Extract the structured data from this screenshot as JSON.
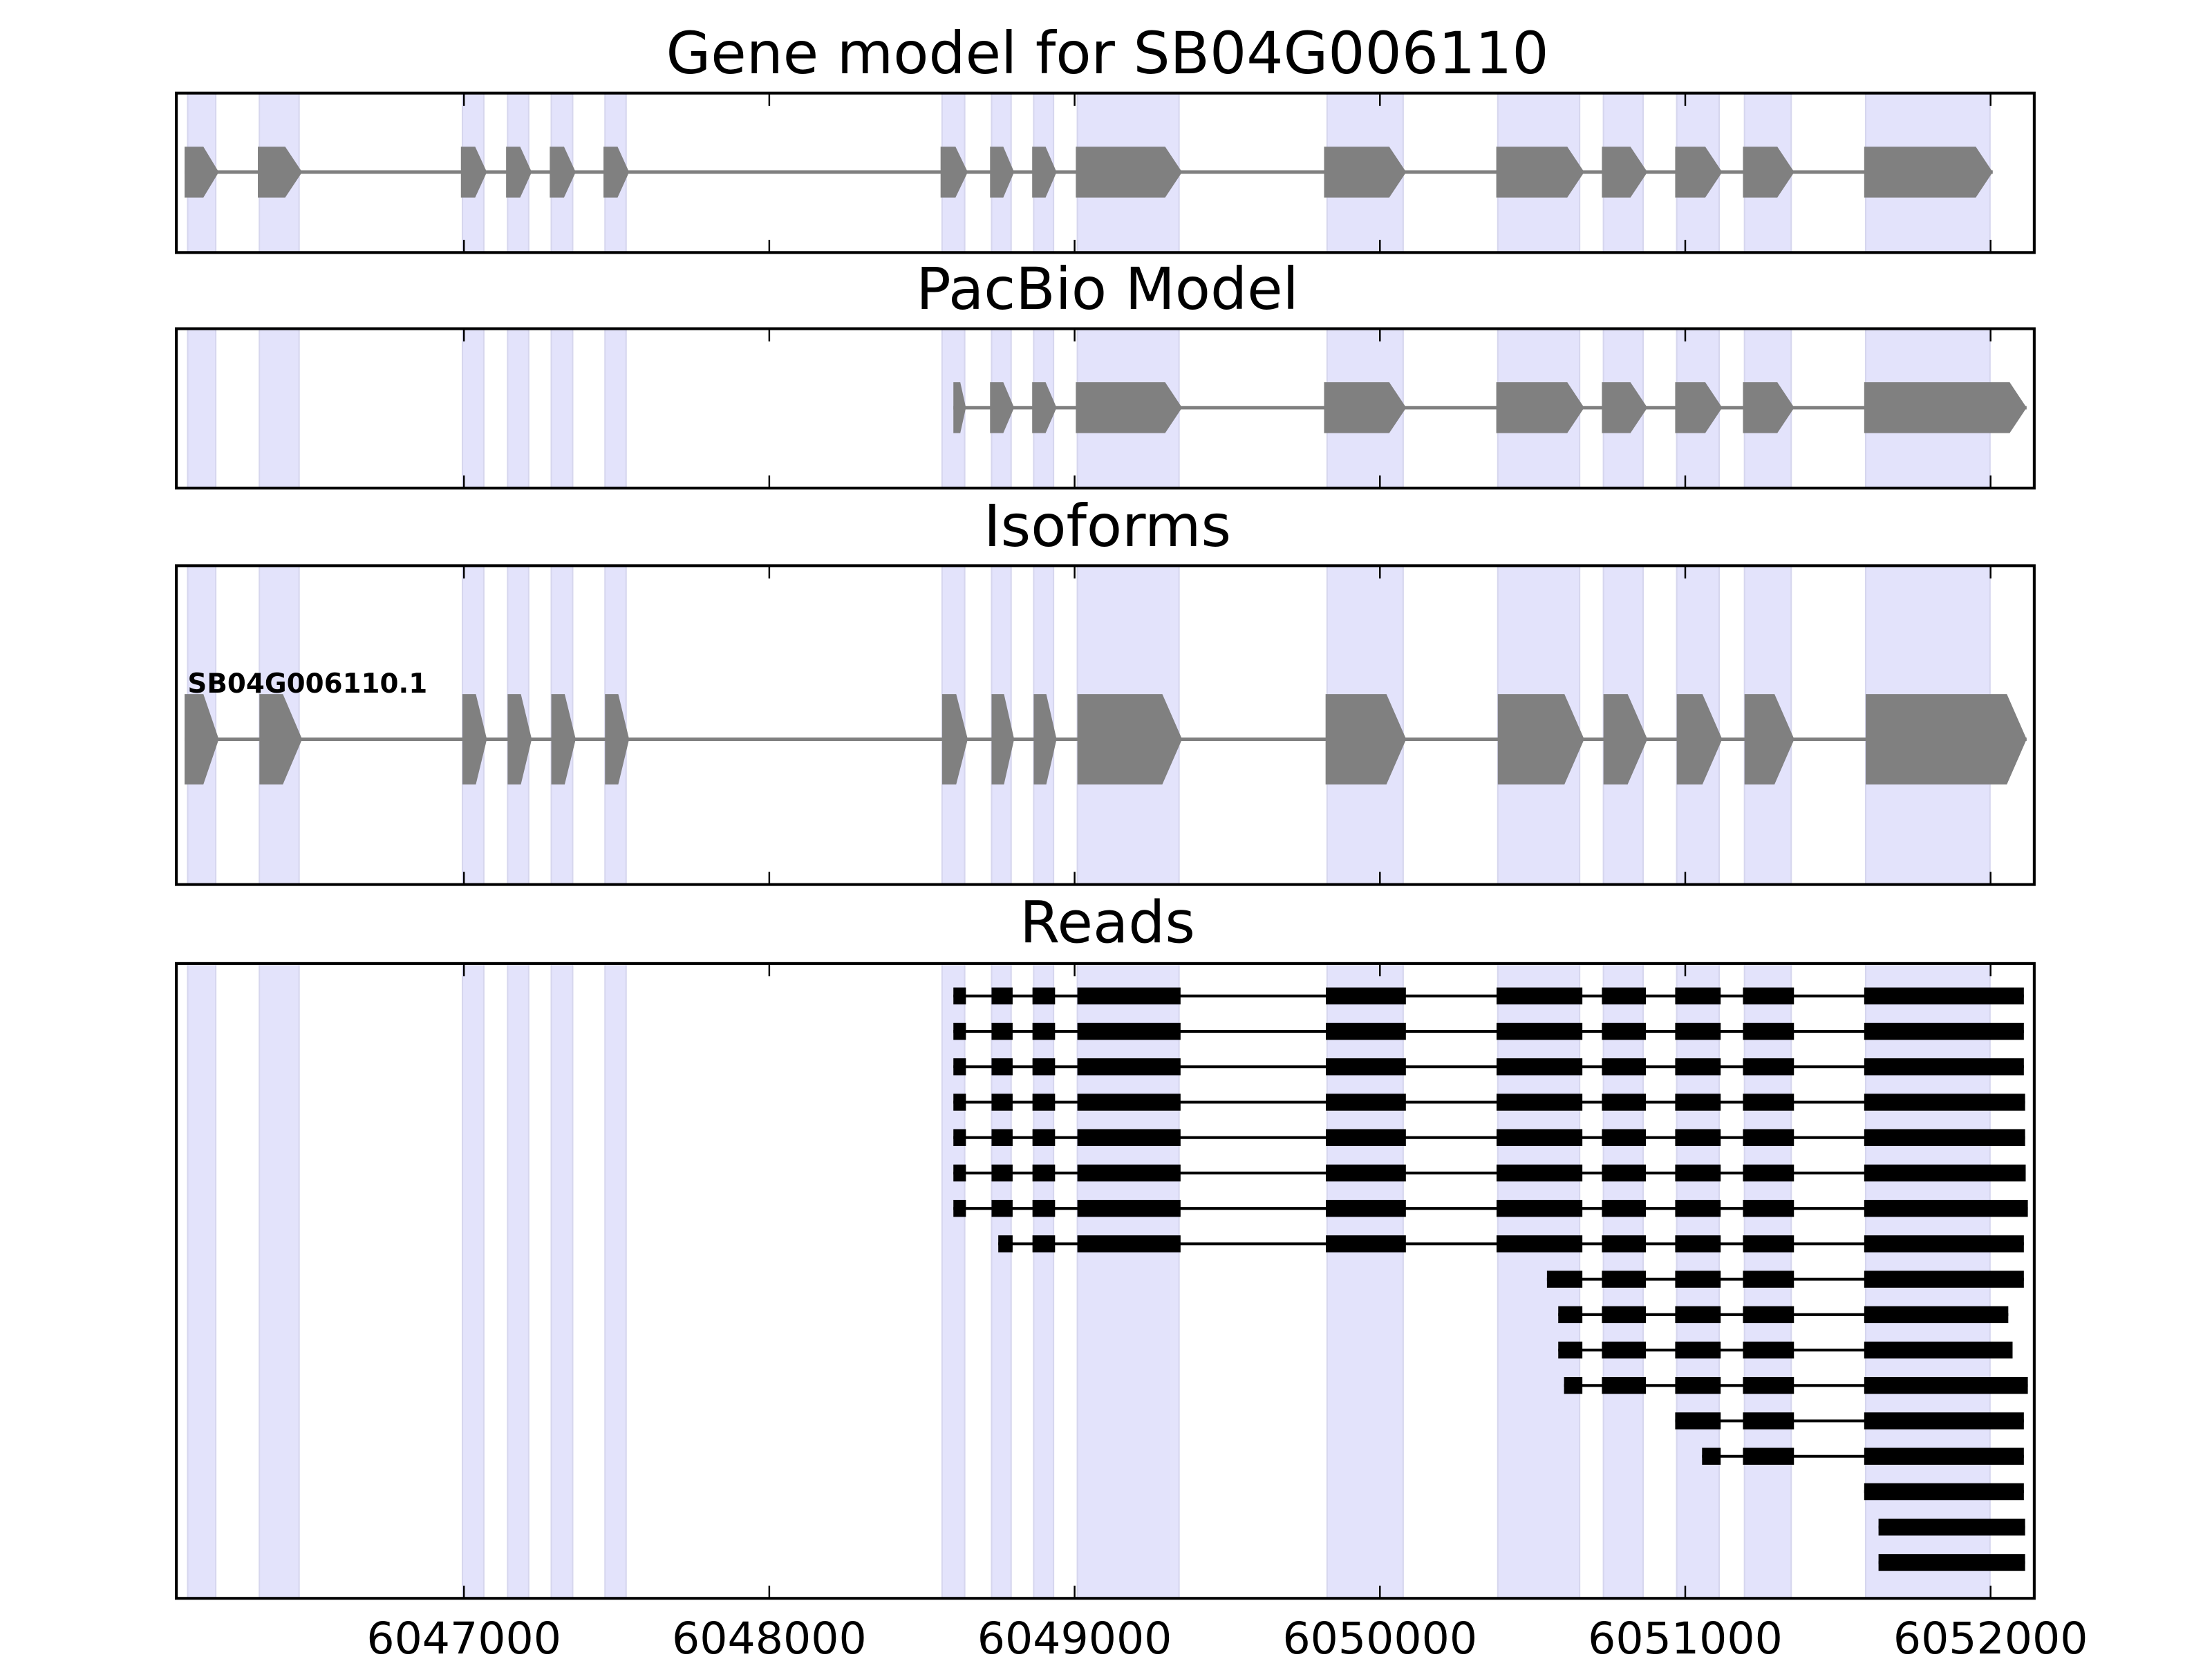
{
  "chart_data": {
    "type": "gene-structure",
    "x_range": [
      6046058,
      6052143
    ],
    "x_ticks": [
      6047000,
      6048000,
      6049000,
      6050000,
      6051000,
      6052000
    ],
    "tick_labels": [
      "6047000",
      "6048000",
      "6049000",
      "6050000",
      "6051000",
      "6052000"
    ],
    "colors": {
      "shading": "#e3e3fb",
      "model": "#808080",
      "reads": "#000000"
    },
    "shaded_regions": [
      [
        6046095,
        6046187
      ],
      [
        6046330,
        6046460
      ],
      [
        6046995,
        6047065
      ],
      [
        6047143,
        6047212
      ],
      [
        6047286,
        6047356
      ],
      [
        6047462,
        6047531
      ],
      [
        6048566,
        6048640
      ],
      [
        6048728,
        6048792
      ],
      [
        6048866,
        6048931
      ],
      [
        6049009,
        6049342
      ],
      [
        6049827,
        6050076
      ],
      [
        6050386,
        6050654
      ],
      [
        6050732,
        6050862
      ],
      [
        6050972,
        6051111
      ],
      [
        6051194,
        6051347
      ],
      [
        6051591,
        6051998
      ]
    ],
    "panels": [
      {
        "title": "Gene model for SB04G006110",
        "kind": "model",
        "exons": [
          [
            6046085,
            6046197
          ],
          [
            6046325,
            6046470
          ],
          [
            6046990,
            6047075
          ],
          [
            6047138,
            6047222
          ],
          [
            6047281,
            6047366
          ],
          [
            6047457,
            6047541
          ],
          [
            6048561,
            6048650
          ],
          [
            6048723,
            6048802
          ],
          [
            6048861,
            6048941
          ],
          [
            6049004,
            6049352
          ],
          [
            6049817,
            6050086
          ],
          [
            6050381,
            6050669
          ],
          [
            6050727,
            6050876
          ],
          [
            6050967,
            6051121
          ],
          [
            6051189,
            6051357
          ],
          [
            6051586,
            6052007
          ]
        ]
      },
      {
        "title": "PacBio Model",
        "kind": "model",
        "exons": [
          [
            6048603,
            6048644
          ],
          [
            6048723,
            6048802
          ],
          [
            6048861,
            6048941
          ],
          [
            6049004,
            6049352
          ],
          [
            6049817,
            6050086
          ],
          [
            6050381,
            6050669
          ],
          [
            6050727,
            6050876
          ],
          [
            6050967,
            6051121
          ],
          [
            6051189,
            6051357
          ],
          [
            6051586,
            6052118
          ]
        ]
      },
      {
        "title": "Isoforms",
        "kind": "isoform",
        "label": "SB04G006110.1",
        "exons": [
          [
            6046085,
            6046197
          ],
          [
            6046330,
            6046470
          ],
          [
            6046995,
            6047075
          ],
          [
            6047143,
            6047222
          ],
          [
            6047286,
            6047366
          ],
          [
            6047462,
            6047541
          ],
          [
            6048566,
            6048650
          ],
          [
            6048728,
            6048802
          ],
          [
            6048866,
            6048941
          ],
          [
            6049009,
            6049352
          ],
          [
            6049822,
            6050086
          ],
          [
            6050386,
            6050669
          ],
          [
            6050732,
            6050876
          ],
          [
            6050972,
            6051121
          ],
          [
            6051194,
            6051357
          ],
          [
            6051591,
            6052118
          ]
        ]
      },
      {
        "title": "Reads",
        "kind": "reads",
        "reads": [
          [
            [
              6048603,
              6048644
            ],
            [
              6048728,
              6048797
            ],
            [
              6048862,
              6048936
            ],
            [
              6049009,
              6049347
            ],
            [
              6049823,
              6050085
            ],
            [
              6050382,
              6050663
            ],
            [
              6050727,
              6050871
            ],
            [
              6050967,
              6051116
            ],
            [
              6051189,
              6051356
            ],
            [
              6051586,
              6052109
            ]
          ],
          [
            [
              6048603,
              6048644
            ],
            [
              6048728,
              6048797
            ],
            [
              6048862,
              6048936
            ],
            [
              6049009,
              6049347
            ],
            [
              6049823,
              6050085
            ],
            [
              6050382,
              6050663
            ],
            [
              6050727,
              6050871
            ],
            [
              6050967,
              6051116
            ],
            [
              6051189,
              6051356
            ],
            [
              6051586,
              6052109
            ]
          ],
          [
            [
              6048603,
              6048644
            ],
            [
              6048728,
              6048797
            ],
            [
              6048862,
              6048936
            ],
            [
              6049009,
              6049347
            ],
            [
              6049823,
              6050085
            ],
            [
              6050382,
              6050663
            ],
            [
              6050727,
              6050871
            ],
            [
              6050967,
              6051116
            ],
            [
              6051189,
              6051356
            ],
            [
              6051586,
              6052109
            ]
          ],
          [
            [
              6048603,
              6048644
            ],
            [
              6048728,
              6048797
            ],
            [
              6048862,
              6048936
            ],
            [
              6049009,
              6049347
            ],
            [
              6049823,
              6050085
            ],
            [
              6050382,
              6050663
            ],
            [
              6050727,
              6050871
            ],
            [
              6050967,
              6051116
            ],
            [
              6051189,
              6051356
            ],
            [
              6051586,
              6052113
            ]
          ],
          [
            [
              6048603,
              6048644
            ],
            [
              6048728,
              6048797
            ],
            [
              6048862,
              6048936
            ],
            [
              6049009,
              6049347
            ],
            [
              6049823,
              6050085
            ],
            [
              6050382,
              6050663
            ],
            [
              6050727,
              6050871
            ],
            [
              6050967,
              6051116
            ],
            [
              6051189,
              6051356
            ],
            [
              6051586,
              6052113
            ]
          ],
          [
            [
              6048603,
              6048644
            ],
            [
              6048728,
              6048797
            ],
            [
              6048862,
              6048936
            ],
            [
              6049009,
              6049347
            ],
            [
              6049823,
              6050085
            ],
            [
              6050382,
              6050663
            ],
            [
              6050727,
              6050871
            ],
            [
              6050967,
              6051116
            ],
            [
              6051189,
              6051356
            ],
            [
              6051586,
              6052115
            ]
          ],
          [
            [
              6048603,
              6048644
            ],
            [
              6048728,
              6048797
            ],
            [
              6048862,
              6048936
            ],
            [
              6049009,
              6049347
            ],
            [
              6049823,
              6050085
            ],
            [
              6050382,
              6050663
            ],
            [
              6050727,
              6050871
            ],
            [
              6050967,
              6051116
            ],
            [
              6051189,
              6051356
            ],
            [
              6051586,
              6052122
            ]
          ],
          [
            [
              6048750,
              6048797
            ],
            [
              6048862,
              6048936
            ],
            [
              6049009,
              6049347
            ],
            [
              6049823,
              6050085
            ],
            [
              6050382,
              6050663
            ],
            [
              6050727,
              6050871
            ],
            [
              6050967,
              6051116
            ],
            [
              6051189,
              6051356
            ],
            [
              6051586,
              6052109
            ]
          ],
          [
            [
              6050547,
              6050663
            ],
            [
              6050727,
              6050871
            ],
            [
              6050967,
              6051116
            ],
            [
              6051189,
              6051356
            ],
            [
              6051586,
              6052109
            ]
          ],
          [
            [
              6050584,
              6050663
            ],
            [
              6050727,
              6050871
            ],
            [
              6050967,
              6051116
            ],
            [
              6051189,
              6051356
            ],
            [
              6051586,
              6052058
            ]
          ],
          [
            [
              6050584,
              6050663
            ],
            [
              6050727,
              6050871
            ],
            [
              6050967,
              6051116
            ],
            [
              6051189,
              6051356
            ],
            [
              6051586,
              6052072
            ]
          ],
          [
            [
              6050603,
              6050663
            ],
            [
              6050727,
              6050871
            ],
            [
              6050967,
              6051116
            ],
            [
              6051189,
              6051356
            ],
            [
              6051586,
              6052122
            ]
          ],
          [
            [
              6050967,
              6051116
            ],
            [
              6051189,
              6051356
            ],
            [
              6051586,
              6052109
            ]
          ],
          [
            [
              6051055,
              6051116
            ],
            [
              6051189,
              6051356
            ],
            [
              6051586,
              6052109
            ]
          ],
          [
            [
              6051586,
              6052109
            ]
          ],
          [
            [
              6051633,
              6052113
            ]
          ],
          [
            [
              6051633,
              6052113
            ]
          ]
        ]
      }
    ]
  }
}
